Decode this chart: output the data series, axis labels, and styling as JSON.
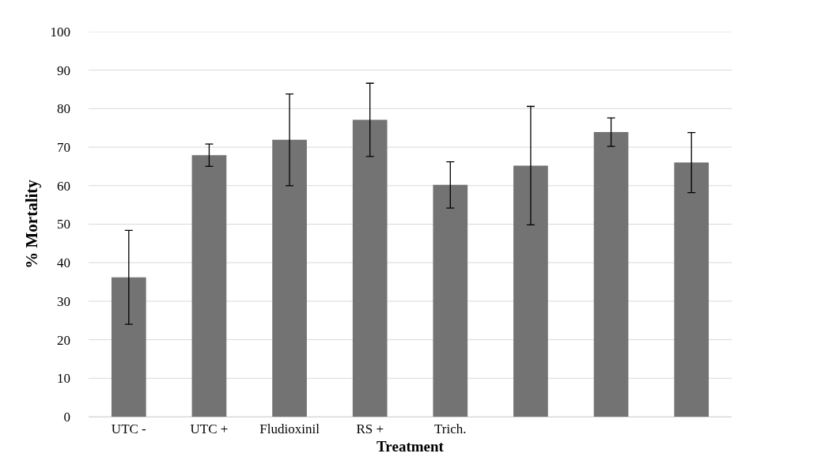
{
  "chart_data": {
    "type": "bar",
    "xlabel": "Treatment",
    "ylabel": "% Mortality",
    "categories": [
      "UTC -",
      "UTC +",
      "Fludioxinil",
      "RS +",
      "Trich.",
      null,
      null,
      null
    ],
    "values": [
      36.2,
      67.9,
      71.9,
      77.1,
      60.2,
      65.2,
      73.9,
      66.0
    ],
    "errors": [
      12.2,
      2.9,
      11.9,
      9.5,
      6.0,
      15.4,
      3.7,
      7.8
    ],
    "color": "#737373",
    "ylim": [
      0,
      100
    ],
    "yticks": [
      0,
      10,
      20,
      30,
      40,
      50,
      60,
      70,
      80,
      90,
      100
    ],
    "grid": "y"
  }
}
